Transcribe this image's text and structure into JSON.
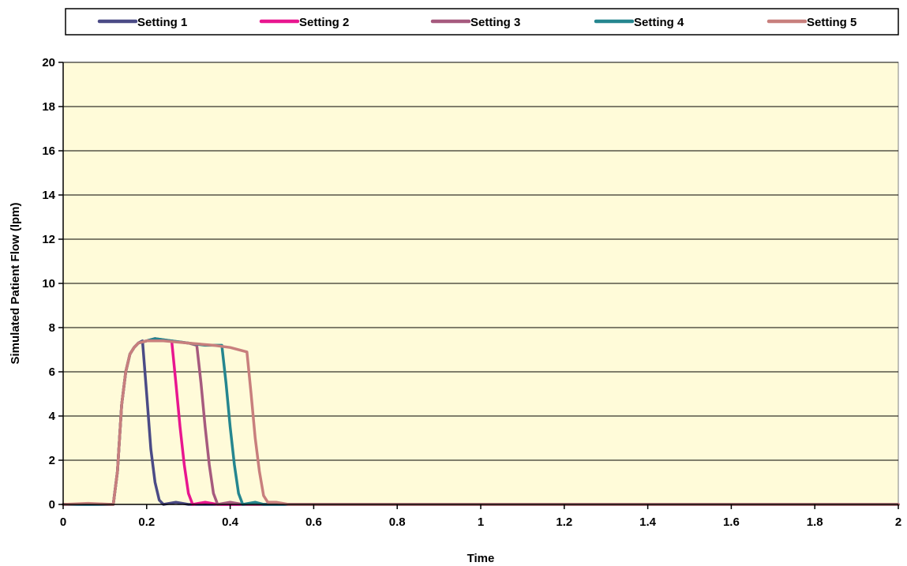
{
  "chart_data": {
    "type": "line",
    "xlabel": "Time",
    "ylabel": "Simulated Patient Flow (lpm)",
    "xlim": [
      0,
      2
    ],
    "ylim": [
      0,
      20
    ],
    "x_ticks": [
      0,
      0.2,
      0.4,
      0.6,
      0.8,
      1,
      1.2,
      1.4,
      1.6,
      1.8,
      2
    ],
    "x_tick_labels": [
      "0",
      "0.2",
      "0.4",
      "0.6",
      "0.8",
      "1",
      "1.2",
      "1.4",
      "1.6",
      "1.8",
      "2"
    ],
    "y_ticks": [
      0,
      2,
      4,
      6,
      8,
      10,
      12,
      14,
      16,
      18,
      20
    ],
    "y_tick_labels": [
      "0",
      "2",
      "4",
      "6",
      "8",
      "10",
      "12",
      "14",
      "16",
      "18",
      "20"
    ],
    "grid": "horizontal",
    "legend_position": "top",
    "plot_background": "#FFFBD9",
    "series": [
      {
        "name": "Setting 1",
        "color": "#4B4B86",
        "points": [
          [
            0,
            0
          ],
          [
            0.12,
            0
          ],
          [
            0.13,
            1.5
          ],
          [
            0.14,
            4.5
          ],
          [
            0.15,
            6.0
          ],
          [
            0.16,
            6.8
          ],
          [
            0.17,
            7.1
          ],
          [
            0.18,
            7.3
          ],
          [
            0.19,
            7.4
          ],
          [
            0.2,
            5.0
          ],
          [
            0.21,
            2.5
          ],
          [
            0.22,
            1.0
          ],
          [
            0.23,
            0.2
          ],
          [
            0.24,
            0
          ],
          [
            0.27,
            0.1
          ],
          [
            0.3,
            0
          ],
          [
            2,
            0
          ]
        ]
      },
      {
        "name": "Setting 2",
        "color": "#E8168F",
        "points": [
          [
            0,
            0
          ],
          [
            0.12,
            0
          ],
          [
            0.13,
            1.5
          ],
          [
            0.14,
            4.5
          ],
          [
            0.15,
            6.0
          ],
          [
            0.16,
            6.8
          ],
          [
            0.17,
            7.1
          ],
          [
            0.18,
            7.3
          ],
          [
            0.2,
            7.4
          ],
          [
            0.22,
            7.5
          ],
          [
            0.24,
            7.4
          ],
          [
            0.26,
            7.4
          ],
          [
            0.27,
            5.5
          ],
          [
            0.28,
            3.5
          ],
          [
            0.29,
            1.8
          ],
          [
            0.3,
            0.5
          ],
          [
            0.31,
            0
          ],
          [
            0.34,
            0.1
          ],
          [
            0.37,
            0
          ],
          [
            2,
            0
          ]
        ]
      },
      {
        "name": "Setting 3",
        "color": "#A65A7E",
        "points": [
          [
            0,
            0
          ],
          [
            0.12,
            0
          ],
          [
            0.13,
            1.5
          ],
          [
            0.14,
            4.5
          ],
          [
            0.15,
            6.0
          ],
          [
            0.16,
            6.8
          ],
          [
            0.17,
            7.1
          ],
          [
            0.18,
            7.3
          ],
          [
            0.2,
            7.4
          ],
          [
            0.22,
            7.5
          ],
          [
            0.26,
            7.4
          ],
          [
            0.3,
            7.3
          ],
          [
            0.32,
            7.2
          ],
          [
            0.33,
            5.5
          ],
          [
            0.34,
            3.5
          ],
          [
            0.35,
            1.8
          ],
          [
            0.36,
            0.5
          ],
          [
            0.37,
            0
          ],
          [
            0.4,
            0.1
          ],
          [
            0.43,
            0
          ],
          [
            2,
            0
          ]
        ]
      },
      {
        "name": "Setting 4",
        "color": "#25868F",
        "points": [
          [
            0,
            0
          ],
          [
            0.12,
            0
          ],
          [
            0.13,
            1.5
          ],
          [
            0.14,
            4.5
          ],
          [
            0.15,
            6.0
          ],
          [
            0.16,
            6.8
          ],
          [
            0.17,
            7.1
          ],
          [
            0.18,
            7.3
          ],
          [
            0.2,
            7.4
          ],
          [
            0.22,
            7.5
          ],
          [
            0.26,
            7.4
          ],
          [
            0.3,
            7.3
          ],
          [
            0.34,
            7.2
          ],
          [
            0.38,
            7.2
          ],
          [
            0.39,
            5.5
          ],
          [
            0.4,
            3.5
          ],
          [
            0.41,
            1.8
          ],
          [
            0.42,
            0.5
          ],
          [
            0.43,
            0
          ],
          [
            0.46,
            0.1
          ],
          [
            0.48,
            0
          ],
          [
            2,
            0
          ]
        ]
      },
      {
        "name": "Setting 5",
        "color": "#C87F7D",
        "points": [
          [
            0,
            0
          ],
          [
            0.06,
            0.05
          ],
          [
            0.12,
            0
          ],
          [
            0.13,
            1.5
          ],
          [
            0.14,
            4.5
          ],
          [
            0.15,
            6.0
          ],
          [
            0.16,
            6.8
          ],
          [
            0.17,
            7.1
          ],
          [
            0.18,
            7.3
          ],
          [
            0.2,
            7.4
          ],
          [
            0.24,
            7.4
          ],
          [
            0.3,
            7.3
          ],
          [
            0.36,
            7.2
          ],
          [
            0.4,
            7.1
          ],
          [
            0.44,
            6.9
          ],
          [
            0.45,
            5.0
          ],
          [
            0.46,
            3.0
          ],
          [
            0.47,
            1.5
          ],
          [
            0.48,
            0.4
          ],
          [
            0.49,
            0.1
          ],
          [
            0.51,
            0.1
          ],
          [
            0.54,
            0
          ],
          [
            2,
            0
          ]
        ]
      }
    ]
  }
}
